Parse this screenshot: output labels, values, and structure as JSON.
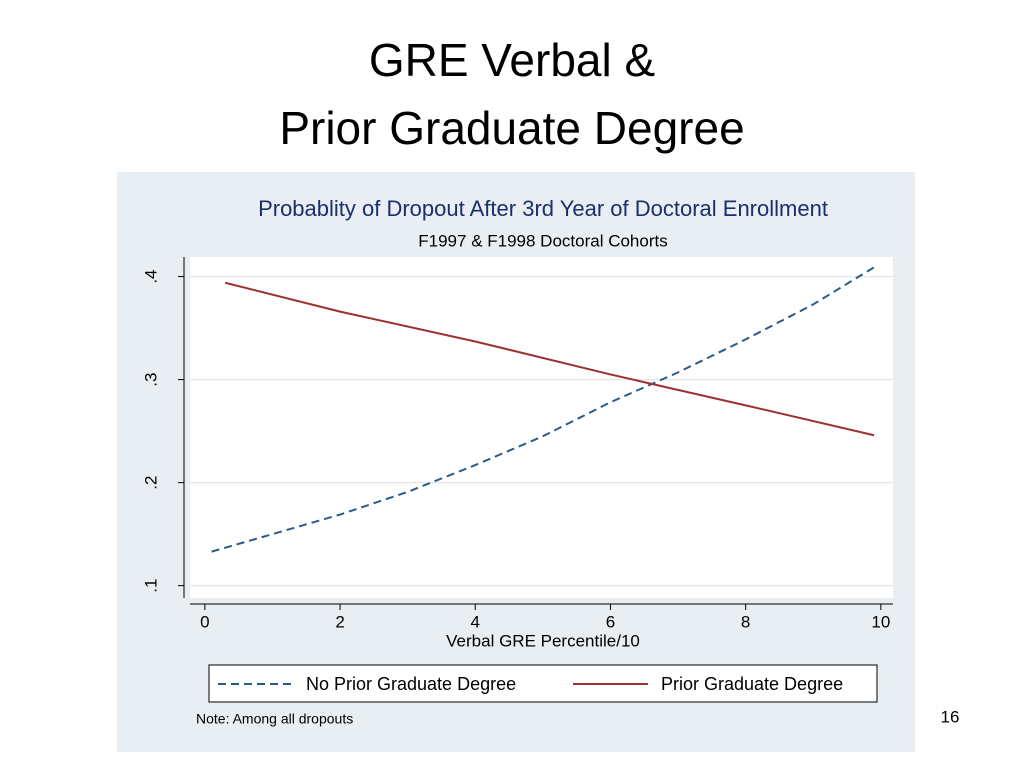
{
  "slide": {
    "title": [
      "GRE Verbal &",
      "Prior Graduate Degree"
    ],
    "page_number": 16
  },
  "chart_data": {
    "type": "line",
    "title": "Probablity of Dropout After 3rd Year of Doctoral Enrollment",
    "subtitle": "F1997 & F1998 Doctoral Cohorts",
    "x_label": "Verbal GRE Percentile/10",
    "note": "Note: Among all dropouts",
    "series": [
      {
        "name": "No Prior Graduate Degree",
        "color": "#2b5a88",
        "style": "dashed",
        "x": [
          0.1,
          1,
          2,
          3,
          4,
          5,
          6,
          7,
          8,
          9,
          9.9
        ],
        "values": [
          0.133,
          0.15,
          0.169,
          0.191,
          0.217,
          0.245,
          0.278,
          0.307,
          0.339,
          0.373,
          0.409
        ]
      },
      {
        "name": "Prior Graduate Degree",
        "color": "#9e3030",
        "style": "solid",
        "x": [
          0.3,
          2,
          4,
          6,
          8,
          9.9
        ],
        "values": [
          0.394,
          0.366,
          0.337,
          0.305,
          0.275,
          0.246
        ]
      }
    ],
    "xlim": [
      -0.22,
      10.18
    ],
    "ylim": [
      0.088,
      0.419
    ],
    "xticks": [
      0,
      2,
      4,
      6,
      8,
      10
    ],
    "yticks": [
      {
        "value": 0.1,
        "label": ".1"
      },
      {
        "value": 0.2,
        "label": ".2"
      },
      {
        "value": 0.3,
        "label": ".3"
      },
      {
        "value": 0.4,
        "label": ".4"
      }
    ],
    "grid": true,
    "legend": "bottom"
  }
}
